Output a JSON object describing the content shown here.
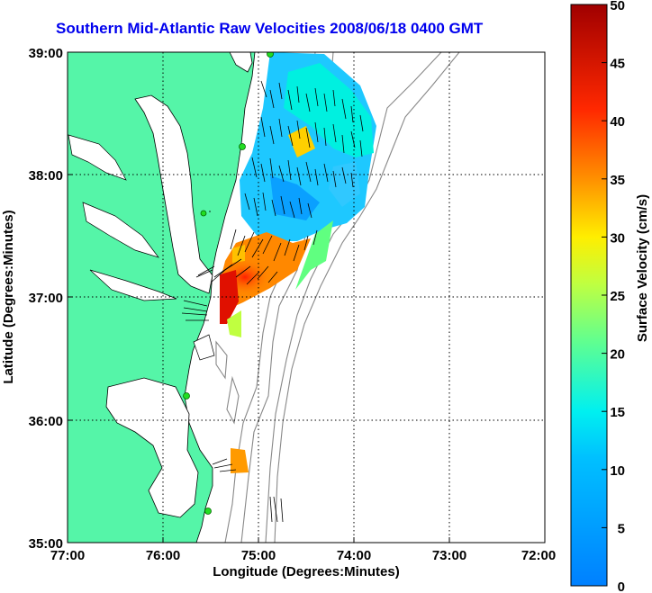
{
  "title": "Southern Mid-Atlantic Raw Velocities 2008/06/18 0400 GMT",
  "map": {
    "xlabel": "Longitude (Degrees:Minutes)",
    "ylabel": "Latitude (Degrees:Minutes)",
    "x_ticks": [
      "77:00",
      "76:00",
      "75:00",
      "74:00",
      "73:00",
      "72:00"
    ],
    "y_ticks": [
      "39:00",
      "38:00",
      "37:00",
      "36:00",
      "35:00"
    ],
    "lon_range": [
      -77,
      -72
    ],
    "lat_range": [
      35,
      39
    ],
    "land_color": "#55f5a8",
    "grid": "dotted"
  },
  "colorbar": {
    "label": "Surface Velocity (cm/s)",
    "range": [
      0,
      50
    ],
    "ticks": [
      "50",
      "45",
      "40",
      "35",
      "30",
      "25",
      "20",
      "15",
      "10",
      "5",
      "0"
    ],
    "colormap": "jet"
  }
}
